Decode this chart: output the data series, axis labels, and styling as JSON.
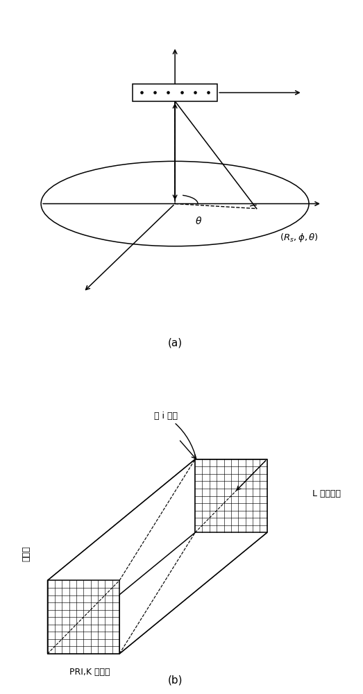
{
  "fig_width": 5.23,
  "fig_height": 10.0,
  "dpi": 100,
  "bg_color": "#ffffff",
  "label_a": "(a)",
  "label_b": "(b)",
  "label_di": "第 i 个距",
  "label_L": "L 个距离门",
  "label_ant": "天线数",
  "label_pri": "PRI,K 个脆冲"
}
